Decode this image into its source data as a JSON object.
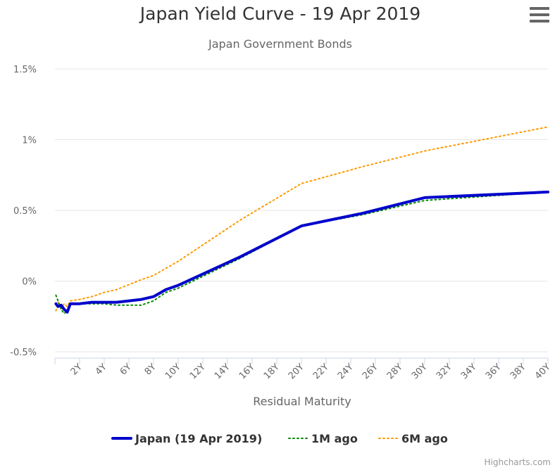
{
  "header": {
    "title": "Japan Yield Curve - 19 Apr 2019",
    "subtitle": "Japan Government Bonds",
    "menu_icon": "hamburger-menu-icon"
  },
  "credits": "Highcharts.com",
  "chart_data": {
    "type": "line",
    "title": "Japan Yield Curve - 19 Apr 2019",
    "subtitle": "Japan Government Bonds",
    "xlabel": "Residual Maturity",
    "ylabel": "",
    "xlim": [
      0,
      40
    ],
    "ylim": [
      -0.5,
      1.5
    ],
    "x_ticks": [
      2,
      4,
      6,
      8,
      10,
      12,
      14,
      16,
      18,
      20,
      22,
      24,
      26,
      28,
      30,
      32,
      34,
      36,
      38,
      40
    ],
    "x_tick_labels": [
      "2Y",
      "4Y",
      "6Y",
      "8Y",
      "10Y",
      "12Y",
      "14Y",
      "16Y",
      "18Y",
      "20Y",
      "22Y",
      "24Y",
      "26Y",
      "28Y",
      "30Y",
      "32Y",
      "34Y",
      "36Y",
      "38Y",
      "40Y"
    ],
    "y_ticks": [
      -0.5,
      0,
      0.5,
      1,
      1.5
    ],
    "y_tick_labels": [
      "-0.5%",
      "0%",
      "0.5%",
      "1%",
      "1.5%"
    ],
    "grid": "horizontal",
    "legend_position": "bottom-center",
    "series": [
      {
        "name": "Japan (19 Apr 2019)",
        "color": "#0000cc",
        "style": "solid",
        "points": [
          [
            0.08,
            -0.16
          ],
          [
            0.25,
            -0.18
          ],
          [
            0.5,
            -0.17
          ],
          [
            0.75,
            -0.2
          ],
          [
            1,
            -0.22
          ],
          [
            1.25,
            -0.16
          ],
          [
            2,
            -0.16
          ],
          [
            3,
            -0.15
          ],
          [
            4,
            -0.15
          ],
          [
            5,
            -0.15
          ],
          [
            7,
            -0.13
          ],
          [
            8,
            -0.11
          ],
          [
            9,
            -0.06
          ],
          [
            10,
            -0.03
          ],
          [
            15,
            0.17
          ],
          [
            20,
            0.39
          ],
          [
            25,
            0.48
          ],
          [
            30,
            0.59
          ],
          [
            40,
            0.63
          ]
        ]
      },
      {
        "name": "1M ago",
        "color": "#008800",
        "style": "dotted",
        "points": [
          [
            0.08,
            -0.1
          ],
          [
            0.25,
            -0.14
          ],
          [
            0.5,
            -0.2
          ],
          [
            0.75,
            -0.23
          ],
          [
            1,
            -0.21
          ],
          [
            1.25,
            -0.16
          ],
          [
            2,
            -0.16
          ],
          [
            3,
            -0.16
          ],
          [
            4,
            -0.16
          ],
          [
            5,
            -0.17
          ],
          [
            7,
            -0.17
          ],
          [
            8,
            -0.14
          ],
          [
            9,
            -0.08
          ],
          [
            10,
            -0.05
          ],
          [
            15,
            0.16
          ],
          [
            20,
            0.39
          ],
          [
            25,
            0.47
          ],
          [
            30,
            0.57
          ],
          [
            40,
            0.63
          ]
        ]
      },
      {
        "name": "6M ago",
        "color": "#ff9900",
        "style": "dotted",
        "points": [
          [
            0.08,
            -0.21
          ],
          [
            0.25,
            -0.15
          ],
          [
            0.5,
            -0.2
          ],
          [
            0.75,
            -0.16
          ],
          [
            1,
            -0.18
          ],
          [
            1.25,
            -0.14
          ],
          [
            2,
            -0.13
          ],
          [
            3,
            -0.11
          ],
          [
            4,
            -0.08
          ],
          [
            5,
            -0.06
          ],
          [
            7,
            0.01
          ],
          [
            8,
            0.04
          ],
          [
            9,
            0.09
          ],
          [
            10,
            0.14
          ],
          [
            15,
            0.43
          ],
          [
            20,
            0.69
          ],
          [
            25,
            0.81
          ],
          [
            30,
            0.92
          ],
          [
            40,
            1.09
          ]
        ]
      }
    ]
  }
}
